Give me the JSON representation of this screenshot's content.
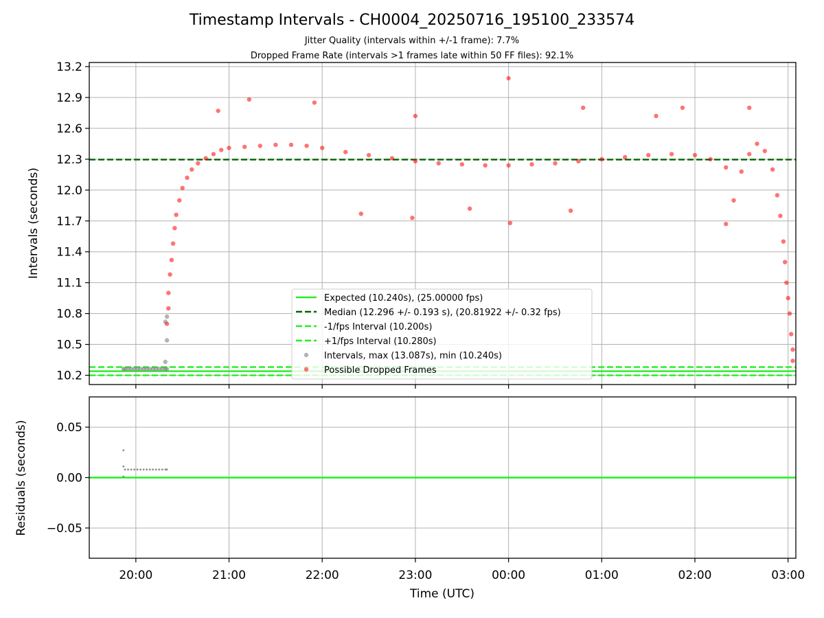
{
  "chart_data": [
    {
      "type": "scatter",
      "title": "Timestamp Intervals - CH0004_20250716_195100_233574",
      "subtitle_lines": [
        "Jitter Quality (intervals within +/-1 frame): 7.7%",
        "Dropped Frame Rate (intervals >1 frames late within 50 FF files): 92.1%"
      ],
      "xlabel": "",
      "ylabel": "Intervals (seconds)",
      "x_range": [
        "19:30",
        "03:05"
      ],
      "xticks": [
        "20:00",
        "21:00",
        "22:00",
        "23:00",
        "00:00",
        "01:00",
        "02:00",
        "03:00"
      ],
      "ylim": [
        10.11,
        13.24
      ],
      "yticks": [
        10.2,
        10.5,
        10.8,
        11.1,
        11.4,
        11.7,
        12.0,
        12.3,
        12.6,
        12.9,
        13.2
      ],
      "ytick_labels": [
        "10.2",
        "10.5",
        "10.8",
        "11.1",
        "11.4",
        "11.7",
        "12.0",
        "12.3",
        "12.6",
        "12.9",
        "13.2"
      ],
      "grid": true,
      "legend_position": "lower-center",
      "reference_lines": [
        {
          "name": "Expected (10.240s), (25.00000 fps)",
          "y": 10.24,
          "style": "solid",
          "color": "#22ee22"
        },
        {
          "name": "Median (12.296 +/- 0.193 s), (20.81922 +/- 0.32 fps)",
          "y": 12.296,
          "style": "dashed",
          "color": "#006400"
        },
        {
          "name": "-1/fps Interval (10.200s)",
          "y": 10.2,
          "style": "dashed",
          "color": "#22ee22"
        },
        {
          "name": "+1/fps Interval (10.280s)",
          "y": 10.28,
          "style": "dashed",
          "color": "#22ee22"
        }
      ],
      "series": [
        {
          "name": "Intervals, max (13.087s), min (10.240s)",
          "color": "#808080",
          "points": [
            [
              "19:52",
              10.261
            ],
            [
              "19:53",
              10.261
            ],
            [
              "19:55",
              10.262
            ],
            [
              "19:57",
              10.261
            ],
            [
              "19:59",
              10.262
            ],
            [
              "20:01",
              10.261
            ],
            [
              "20:03",
              10.262
            ],
            [
              "20:05",
              10.261
            ],
            [
              "20:07",
              10.262
            ],
            [
              "20:09",
              10.261
            ],
            [
              "20:11",
              10.262
            ],
            [
              "20:13",
              10.261
            ],
            [
              "20:15",
              10.262
            ],
            [
              "20:17",
              10.261
            ],
            [
              "20:19",
              10.262
            ],
            [
              "20:20",
              10.261
            ],
            [
              "20:19",
              10.33
            ],
            [
              "20:20",
              10.54
            ],
            [
              "20:19",
              10.72
            ],
            [
              "20:20",
              10.77
            ]
          ]
        },
        {
          "name": "Possible Dropped Frames",
          "color": "#ff0000",
          "points": [
            [
              "20:20",
              10.7
            ],
            [
              "20:21",
              10.85
            ],
            [
              "20:21",
              11.0
            ],
            [
              "20:22",
              11.18
            ],
            [
              "20:23",
              11.32
            ],
            [
              "20:24",
              11.48
            ],
            [
              "20:25",
              11.63
            ],
            [
              "20:26",
              11.76
            ],
            [
              "20:28",
              11.9
            ],
            [
              "20:30",
              12.02
            ],
            [
              "20:33",
              12.12
            ],
            [
              "20:36",
              12.2
            ],
            [
              "20:40",
              12.26
            ],
            [
              "20:45",
              12.31
            ],
            [
              "20:50",
              12.35
            ],
            [
              "20:55",
              12.39
            ],
            [
              "21:00",
              12.41
            ],
            [
              "21:10",
              12.42
            ],
            [
              "21:20",
              12.43
            ],
            [
              "21:30",
              12.44
            ],
            [
              "21:40",
              12.44
            ],
            [
              "21:50",
              12.43
            ],
            [
              "22:00",
              12.41
            ],
            [
              "22:15",
              12.37
            ],
            [
              "22:30",
              12.34
            ],
            [
              "22:45",
              12.31
            ],
            [
              "23:00",
              12.28
            ],
            [
              "23:15",
              12.26
            ],
            [
              "23:30",
              12.25
            ],
            [
              "23:45",
              12.24
            ],
            [
              "00:00",
              12.24
            ],
            [
              "00:15",
              12.25
            ],
            [
              "00:30",
              12.26
            ],
            [
              "00:45",
              12.28
            ],
            [
              "01:00",
              12.3
            ],
            [
              "01:15",
              12.32
            ],
            [
              "01:30",
              12.34
            ],
            [
              "01:45",
              12.35
            ],
            [
              "02:00",
              12.34
            ],
            [
              "02:10",
              12.3
            ],
            [
              "02:20",
              12.22
            ],
            [
              "02:30",
              12.18
            ],
            [
              "02:35",
              12.35
            ],
            [
              "02:40",
              12.45
            ],
            [
              "02:45",
              12.38
            ],
            [
              "02:50",
              12.2
            ],
            [
              "02:53",
              11.95
            ],
            [
              "02:55",
              11.75
            ],
            [
              "02:57",
              11.5
            ],
            [
              "02:58",
              11.3
            ],
            [
              "02:59",
              11.1
            ],
            [
              "03:00",
              10.95
            ],
            [
              "03:01",
              10.8
            ],
            [
              "03:02",
              10.6
            ],
            [
              "03:03",
              10.45
            ],
            [
              "21:13",
              12.88
            ],
            [
              "21:55",
              12.85
            ],
            [
              "23:00",
              12.72
            ],
            [
              "00:00",
              13.087
            ],
            [
              "00:01",
              11.68
            ],
            [
              "22:25",
              11.77
            ],
            [
              "22:58",
              11.73
            ],
            [
              "02:20",
              11.67
            ],
            [
              "01:35",
              12.72
            ],
            [
              "01:52",
              12.8
            ],
            [
              "02:35",
              12.8
            ],
            [
              "00:48",
              12.8
            ],
            [
              "20:53",
              12.77
            ],
            [
              "03:03",
              10.34
            ],
            [
              "02:25",
              11.9
            ],
            [
              "23:35",
              11.82
            ],
            [
              "00:40",
              11.8
            ]
          ]
        }
      ]
    },
    {
      "type": "scatter",
      "title": "",
      "xlabel": "Time (UTC)",
      "ylabel": "Residuals (seconds)",
      "x_range": [
        "19:30",
        "03:05"
      ],
      "xticks": [
        "20:00",
        "21:00",
        "22:00",
        "23:00",
        "00:00",
        "01:00",
        "02:00",
        "03:00"
      ],
      "ylim": [
        -0.08,
        0.08
      ],
      "yticks": [
        -0.05,
        0.0,
        0.05
      ],
      "ytick_labels": [
        "−0.05",
        "0.00",
        "0.05"
      ],
      "grid": true,
      "reference_lines": [
        {
          "y": 0.0,
          "style": "solid",
          "color": "#22ee22"
        }
      ],
      "series": [
        {
          "color": "#808080",
          "points": [
            [
              "19:52",
              0.027
            ],
            [
              "19:52",
              0.011
            ],
            [
              "19:52",
              0.001
            ],
            [
              "19:53",
              0.008
            ],
            [
              "19:55",
              0.008
            ],
            [
              "19:57",
              0.008
            ],
            [
              "19:59",
              0.008
            ],
            [
              "20:01",
              0.008
            ],
            [
              "20:03",
              0.008
            ],
            [
              "20:05",
              0.008
            ],
            [
              "20:07",
              0.008
            ],
            [
              "20:09",
              0.008
            ],
            [
              "20:11",
              0.008
            ],
            [
              "20:13",
              0.008
            ],
            [
              "20:15",
              0.008
            ],
            [
              "20:17",
              0.008
            ],
            [
              "20:19",
              0.008
            ],
            [
              "20:20",
              0.008
            ]
          ]
        }
      ]
    }
  ]
}
